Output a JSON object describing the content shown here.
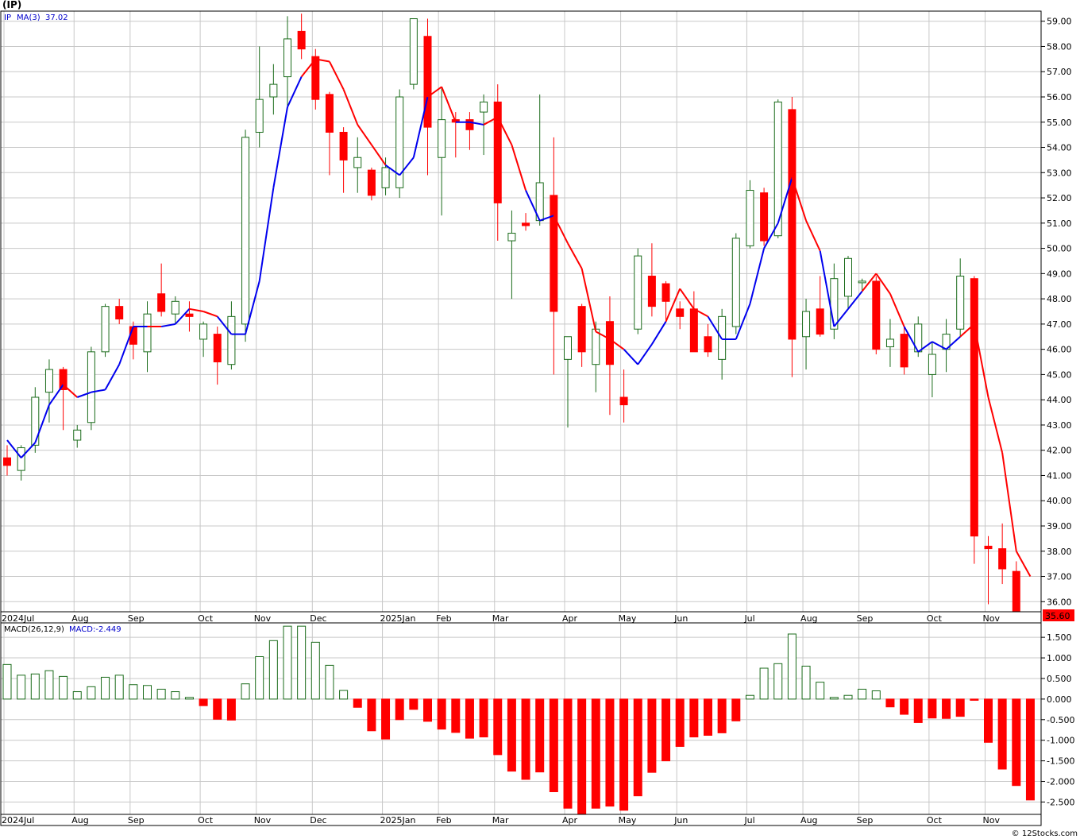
{
  "ticker_label": "(IP)",
  "footer": "© 12Stocks.com",
  "colors": {
    "up": "#1a6b1a",
    "down": "#ff0000",
    "ma_up": "#0000ee",
    "ma_down": "#ff0000",
    "grid": "#c8c8c8",
    "legend_text": "#0000cc",
    "frame": "#000000"
  },
  "chart_data": [
    {
      "type": "candlestick",
      "legend": {
        "symbol": "IP",
        "ma_label": "MA(3)",
        "ma_value": "37.02"
      },
      "last_price_label": "35.60",
      "ylim": [
        35.6,
        59.4
      ],
      "y_ticks": [
        "36.00",
        "37.00",
        "38.00",
        "39.00",
        "40.00",
        "41.00",
        "42.00",
        "43.00",
        "44.00",
        "45.00",
        "46.00",
        "47.00",
        "48.00",
        "49.00",
        "50.00",
        "51.00",
        "52.00",
        "53.00",
        "54.00",
        "55.00",
        "56.00",
        "57.00",
        "58.00",
        "59.00"
      ],
      "x_labels": [
        {
          "text": "2024Jul",
          "bar": 0
        },
        {
          "text": "Aug",
          "bar": 5
        },
        {
          "text": "Sep",
          "bar": 9
        },
        {
          "text": "Oct",
          "bar": 14
        },
        {
          "text": "Nov",
          "bar": 18
        },
        {
          "text": "Dec",
          "bar": 22
        },
        {
          "text": "2025Jan",
          "bar": 27
        },
        {
          "text": "Feb",
          "bar": 31
        },
        {
          "text": "Mar",
          "bar": 35
        },
        {
          "text": "Apr",
          "bar": 40
        },
        {
          "text": "May",
          "bar": 44
        },
        {
          "text": "Jun",
          "bar": 48
        },
        {
          "text": "Jul",
          "bar": 53
        },
        {
          "text": "Aug",
          "bar": 57
        },
        {
          "text": "Sep",
          "bar": 61
        },
        {
          "text": "Oct",
          "bar": 66
        },
        {
          "text": "Nov",
          "bar": 70
        }
      ],
      "candles": [
        {
          "o": 41.7,
          "h": 42.2,
          "l": 41.0,
          "c": 41.4
        },
        {
          "o": 41.2,
          "h": 42.2,
          "l": 40.8,
          "c": 42.1
        },
        {
          "o": 42.2,
          "h": 44.5,
          "l": 41.9,
          "c": 44.1
        },
        {
          "o": 44.3,
          "h": 45.6,
          "l": 43.1,
          "c": 45.2
        },
        {
          "o": 45.2,
          "h": 45.3,
          "l": 42.8,
          "c": 44.4
        },
        {
          "o": 42.4,
          "h": 43.0,
          "l": 42.1,
          "c": 42.8
        },
        {
          "o": 43.1,
          "h": 46.1,
          "l": 42.8,
          "c": 45.9
        },
        {
          "o": 45.9,
          "h": 47.8,
          "l": 45.7,
          "c": 47.7
        },
        {
          "o": 47.7,
          "h": 48.0,
          "l": 47.0,
          "c": 47.2
        },
        {
          "o": 46.9,
          "h": 47.1,
          "l": 45.6,
          "c": 46.2
        },
        {
          "o": 45.9,
          "h": 47.9,
          "l": 45.1,
          "c": 47.4
        },
        {
          "o": 48.2,
          "h": 49.4,
          "l": 47.3,
          "c": 47.5
        },
        {
          "o": 47.4,
          "h": 48.1,
          "l": 47.0,
          "c": 47.9
        },
        {
          "o": 47.4,
          "h": 47.9,
          "l": 46.7,
          "c": 47.3
        },
        {
          "o": 46.4,
          "h": 47.1,
          "l": 45.7,
          "c": 47.0
        },
        {
          "o": 46.6,
          "h": 46.9,
          "l": 44.6,
          "c": 45.5
        },
        {
          "o": 45.4,
          "h": 47.9,
          "l": 45.2,
          "c": 47.3
        },
        {
          "o": 47.0,
          "h": 54.7,
          "l": 46.3,
          "c": 54.4
        },
        {
          "o": 54.6,
          "h": 58.0,
          "l": 54.0,
          "c": 55.9
        },
        {
          "o": 56.0,
          "h": 57.3,
          "l": 55.3,
          "c": 56.5
        },
        {
          "o": 56.8,
          "h": 59.2,
          "l": 55.6,
          "c": 58.3
        },
        {
          "o": 58.6,
          "h": 59.3,
          "l": 57.5,
          "c": 57.9
        },
        {
          "o": 57.6,
          "h": 57.9,
          "l": 55.5,
          "c": 55.9
        },
        {
          "o": 56.1,
          "h": 56.2,
          "l": 52.9,
          "c": 54.6
        },
        {
          "o": 54.6,
          "h": 54.8,
          "l": 52.2,
          "c": 53.5
        },
        {
          "o": 53.2,
          "h": 54.4,
          "l": 52.2,
          "c": 53.6
        },
        {
          "o": 53.1,
          "h": 53.2,
          "l": 51.9,
          "c": 52.1
        },
        {
          "o": 52.4,
          "h": 53.6,
          "l": 52.1,
          "c": 53.2
        },
        {
          "o": 52.4,
          "h": 56.3,
          "l": 52.0,
          "c": 56.0
        },
        {
          "o": 56.5,
          "h": 59.1,
          "l": 56.3,
          "c": 59.1
        },
        {
          "o": 58.4,
          "h": 59.1,
          "l": 52.9,
          "c": 54.8
        },
        {
          "o": 53.6,
          "h": 56.4,
          "l": 51.3,
          "c": 55.1
        },
        {
          "o": 55.1,
          "h": 55.4,
          "l": 53.6,
          "c": 55.0
        },
        {
          "o": 55.1,
          "h": 55.4,
          "l": 53.9,
          "c": 54.7
        },
        {
          "o": 55.4,
          "h": 56.1,
          "l": 53.7,
          "c": 55.8
        },
        {
          "o": 55.8,
          "h": 56.5,
          "l": 50.3,
          "c": 51.8
        },
        {
          "o": 50.3,
          "h": 51.5,
          "l": 48.0,
          "c": 50.6
        },
        {
          "o": 51.0,
          "h": 51.4,
          "l": 50.7,
          "c": 50.9
        },
        {
          "o": 51.1,
          "h": 56.1,
          "l": 50.9,
          "c": 52.6
        },
        {
          "o": 52.1,
          "h": 54.4,
          "l": 45.0,
          "c": 47.5
        },
        {
          "o": 45.6,
          "h": 46.4,
          "l": 42.9,
          "c": 46.5
        },
        {
          "o": 47.7,
          "h": 47.8,
          "l": 45.3,
          "c": 45.9
        },
        {
          "o": 45.4,
          "h": 47.1,
          "l": 44.3,
          "c": 46.8
        },
        {
          "o": 47.1,
          "h": 48.1,
          "l": 43.4,
          "c": 45.4
        },
        {
          "o": 44.1,
          "h": 45.2,
          "l": 43.1,
          "c": 43.8
        },
        {
          "o": 46.8,
          "h": 50.0,
          "l": 46.6,
          "c": 49.7
        },
        {
          "o": 48.9,
          "h": 50.2,
          "l": 47.3,
          "c": 47.7
        },
        {
          "o": 48.6,
          "h": 48.7,
          "l": 47.1,
          "c": 47.9
        },
        {
          "o": 47.6,
          "h": 47.9,
          "l": 46.8,
          "c": 47.3
        },
        {
          "o": 47.6,
          "h": 48.3,
          "l": 45.9,
          "c": 45.9
        },
        {
          "o": 46.5,
          "h": 47.0,
          "l": 45.7,
          "c": 45.9
        },
        {
          "o": 45.6,
          "h": 47.6,
          "l": 44.8,
          "c": 47.3
        },
        {
          "o": 46.9,
          "h": 50.6,
          "l": 46.6,
          "c": 50.4
        },
        {
          "o": 50.1,
          "h": 52.7,
          "l": 50.0,
          "c": 52.3
        },
        {
          "o": 52.2,
          "h": 52.4,
          "l": 50.1,
          "c": 50.3
        },
        {
          "o": 50.5,
          "h": 55.9,
          "l": 50.4,
          "c": 55.8
        },
        {
          "o": 55.5,
          "h": 56.0,
          "l": 44.9,
          "c": 46.4
        },
        {
          "o": 46.5,
          "h": 48.0,
          "l": 45.2,
          "c": 47.5
        },
        {
          "o": 47.6,
          "h": 48.9,
          "l": 46.5,
          "c": 46.6
        },
        {
          "o": 46.8,
          "h": 49.4,
          "l": 46.4,
          "c": 48.8
        },
        {
          "o": 48.1,
          "h": 49.7,
          "l": 47.6,
          "c": 49.6
        },
        {
          "o": 48.7,
          "h": 48.8,
          "l": 48.3,
          "c": 48.7
        },
        {
          "o": 48.7,
          "h": 48.9,
          "l": 45.8,
          "c": 46.0
        },
        {
          "o": 46.1,
          "h": 47.2,
          "l": 45.3,
          "c": 46.4
        },
        {
          "o": 46.6,
          "h": 46.9,
          "l": 45.0,
          "c": 45.3
        },
        {
          "o": 45.9,
          "h": 47.3,
          "l": 45.7,
          "c": 47.0
        },
        {
          "o": 45.0,
          "h": 46.3,
          "l": 44.1,
          "c": 45.8
        },
        {
          "o": 46.0,
          "h": 47.2,
          "l": 45.1,
          "c": 46.6
        },
        {
          "o": 46.8,
          "h": 49.6,
          "l": 46.5,
          "c": 48.9
        },
        {
          "o": 48.8,
          "h": 48.9,
          "l": 37.5,
          "c": 38.6
        },
        {
          "o": 38.2,
          "h": 38.6,
          "l": 35.9,
          "c": 38.1
        },
        {
          "o": 38.1,
          "h": 39.1,
          "l": 36.7,
          "c": 37.3
        },
        {
          "o": 37.2,
          "h": 37.6,
          "l": 35.6,
          "c": 35.6
        }
      ],
      "ma3": [
        42.4,
        41.7,
        42.3,
        43.8,
        44.6,
        44.1,
        44.3,
        44.4,
        45.4,
        46.9,
        46.9,
        46.9,
        47.0,
        47.6,
        47.5,
        47.3,
        46.6,
        46.6,
        48.7,
        52.4,
        55.6,
        56.8,
        57.5,
        57.4,
        56.3,
        54.9,
        54.1,
        53.3,
        52.9,
        53.6,
        56.0,
        56.4,
        55.0,
        55.0,
        54.9,
        55.2,
        54.1,
        52.3,
        51.1,
        51.3,
        50.2,
        49.2,
        46.7,
        46.4,
        46.0,
        45.4,
        46.2,
        47.1,
        48.4,
        47.6,
        47.3,
        46.4,
        46.4,
        47.8,
        50.0,
        51.0,
        52.8,
        51.1,
        49.9,
        46.9,
        47.6,
        48.3,
        49.0,
        48.2,
        46.9,
        45.9,
        46.3,
        46.0,
        46.5,
        47.0,
        44.1,
        41.9,
        38.0,
        37.0
      ],
      "ma_colors": [
        "r",
        "b",
        "b",
        "b",
        "b",
        "r",
        "b",
        "b",
        "b",
        "b",
        "b",
        "r",
        "b",
        "b",
        "r",
        "r",
        "b",
        "b",
        "b",
        "b",
        "b",
        "b",
        "r",
        "r",
        "r",
        "r",
        "r",
        "r",
        "b",
        "b",
        "b",
        "r",
        "r",
        "b",
        "b",
        "r",
        "r",
        "r",
        "b",
        "b",
        "r",
        "r",
        "r",
        "r",
        "r",
        "b",
        "b",
        "b",
        "r",
        "r",
        "r",
        "b",
        "b",
        "b",
        "b",
        "b",
        "b",
        "r",
        "r",
        "b",
        "b",
        "b",
        "r",
        "r",
        "r",
        "b",
        "b",
        "b",
        "b",
        "r",
        "r",
        "r",
        "r",
        "r"
      ]
    },
    {
      "type": "bar",
      "legend": {
        "label": "MACD(26,12,9)",
        "value_label": "MACD:-2.449"
      },
      "ylim": [
        -2.8,
        1.85
      ],
      "y_ticks": [
        "1.500",
        "1.000",
        "0.500",
        "0.000",
        "-0.500",
        "-1.000",
        "-1.500",
        "-2.000",
        "-2.500"
      ],
      "values": [
        0.84,
        0.58,
        0.61,
        0.69,
        0.55,
        0.18,
        0.3,
        0.53,
        0.58,
        0.35,
        0.33,
        0.24,
        0.18,
        0.04,
        -0.16,
        -0.49,
        -0.51,
        0.37,
        1.03,
        1.42,
        1.77,
        1.77,
        1.38,
        0.82,
        0.21,
        -0.2,
        -0.77,
        -0.97,
        -0.5,
        -0.25,
        -0.54,
        -0.73,
        -0.81,
        -0.95,
        -0.92,
        -1.35,
        -1.75,
        -1.95,
        -1.77,
        -2.25,
        -2.65,
        -2.8,
        -2.65,
        -2.6,
        -2.7,
        -2.35,
        -1.78,
        -1.5,
        -1.15,
        -0.92,
        -0.88,
        -0.82,
        -0.53,
        0.09,
        0.75,
        0.86,
        1.58,
        0.8,
        0.41,
        0.04,
        0.09,
        0.24,
        0.2,
        -0.19,
        -0.37,
        -0.57,
        -0.46,
        -0.47,
        -0.42,
        -0.03,
        -1.05,
        -1.7,
        -2.1,
        -2.45
      ]
    }
  ]
}
